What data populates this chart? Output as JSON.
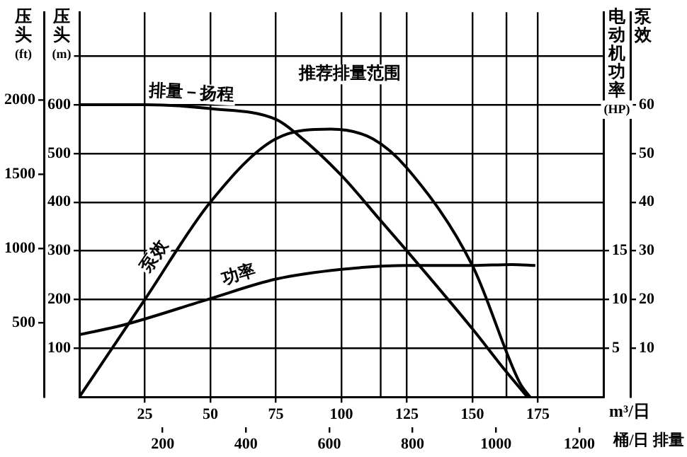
{
  "chart_data": {
    "type": "line",
    "xlabel": "m³/日",
    "x2label": "桶/日 排量",
    "ylabel": "压头(m)",
    "y2label": "电动机功率(HP)",
    "y3label": "泵效",
    "annotations": [
      "压头(ft)",
      "500",
      "1000",
      "1500",
      "2000"
    ],
    "xlim": [
      0,
      200
    ],
    "xticks": [
      25,
      50,
      75,
      100,
      125,
      150,
      175
    ],
    "x2lim": [
      0,
      1258
    ],
    "x2ticks": [
      200,
      400,
      600,
      800,
      1000,
      1200
    ],
    "ylim": [
      0,
      790
    ],
    "yticks": [
      100,
      200,
      300,
      400,
      500,
      600,
      {
        "value": 700,
        "label": null
      }
    ],
    "y2lim": [
      0,
      39.5
    ],
    "y2ticks": [
      5,
      10,
      15
    ],
    "y3lim": [
      0,
      79
    ],
    "y3ticks": [
      10,
      20,
      30,
      40,
      50,
      60
    ],
    "grid": true,
    "legend": false,
    "marker": "none",
    "line_style": "solid",
    "ref_lines": [
      {
        "axis": "x",
        "value": 115,
        "label": "推荐排量范围"
      },
      {
        "axis": "x",
        "value": 163
      }
    ],
    "series": [
      {
        "name": "排量－扬程",
        "color": "#000000",
        "x": [
          0,
          25,
          50,
          75,
          83,
          100,
          115,
          125,
          150,
          162,
          171
        ],
        "values": [
          600,
          600,
          592,
          570,
          540,
          455,
          362,
          300,
          140,
          58,
          0
        ]
      },
      {
        "name": "泵效",
        "color": "#000000",
        "axis": "y3",
        "x": [
          0,
          12.5,
          25,
          50,
          75,
          96,
          112,
          125,
          150,
          168,
          172
        ],
        "values": [
          0,
          10,
          20,
          40,
          53,
          55,
          53,
          47,
          27,
          3,
          0
        ]
      },
      {
        "name": "功率",
        "color": "#000000",
        "axis": "y2",
        "x": [
          0,
          17,
          50,
          75,
          100,
          125,
          150,
          165,
          174
        ],
        "values": [
          6.4,
          7.4,
          10.1,
          12.1,
          13.1,
          13.5,
          13.5,
          13.6,
          13.5
        ]
      }
    ]
  }
}
